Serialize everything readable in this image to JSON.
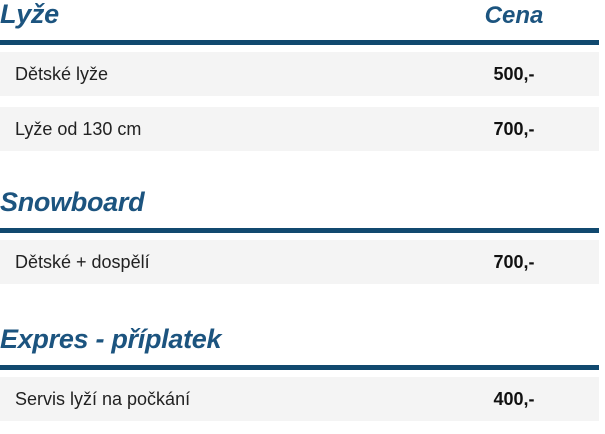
{
  "theme": {
    "accent_blue": "#1c547f",
    "rule_blue": "#11496f",
    "row_background": "#f4f4f4",
    "row_text": "#222222",
    "price_text": "#111111",
    "page_background": "#ffffff"
  },
  "sections": [
    {
      "title": "Lyže",
      "price_header": "Cena",
      "rows": [
        {
          "label": "Dětské lyže",
          "price": "500,-"
        },
        {
          "label": "Lyže od 130 cm",
          "price": "700,-"
        }
      ]
    },
    {
      "title": "Snowboard",
      "price_header": "",
      "rows": [
        {
          "label": "Dětské + dospělí",
          "price": "700,-"
        }
      ]
    },
    {
      "title": "Expres - příplatek",
      "price_header": "",
      "rows": [
        {
          "label": "Servis lyží na počkání",
          "price": "400,-"
        }
      ]
    }
  ]
}
